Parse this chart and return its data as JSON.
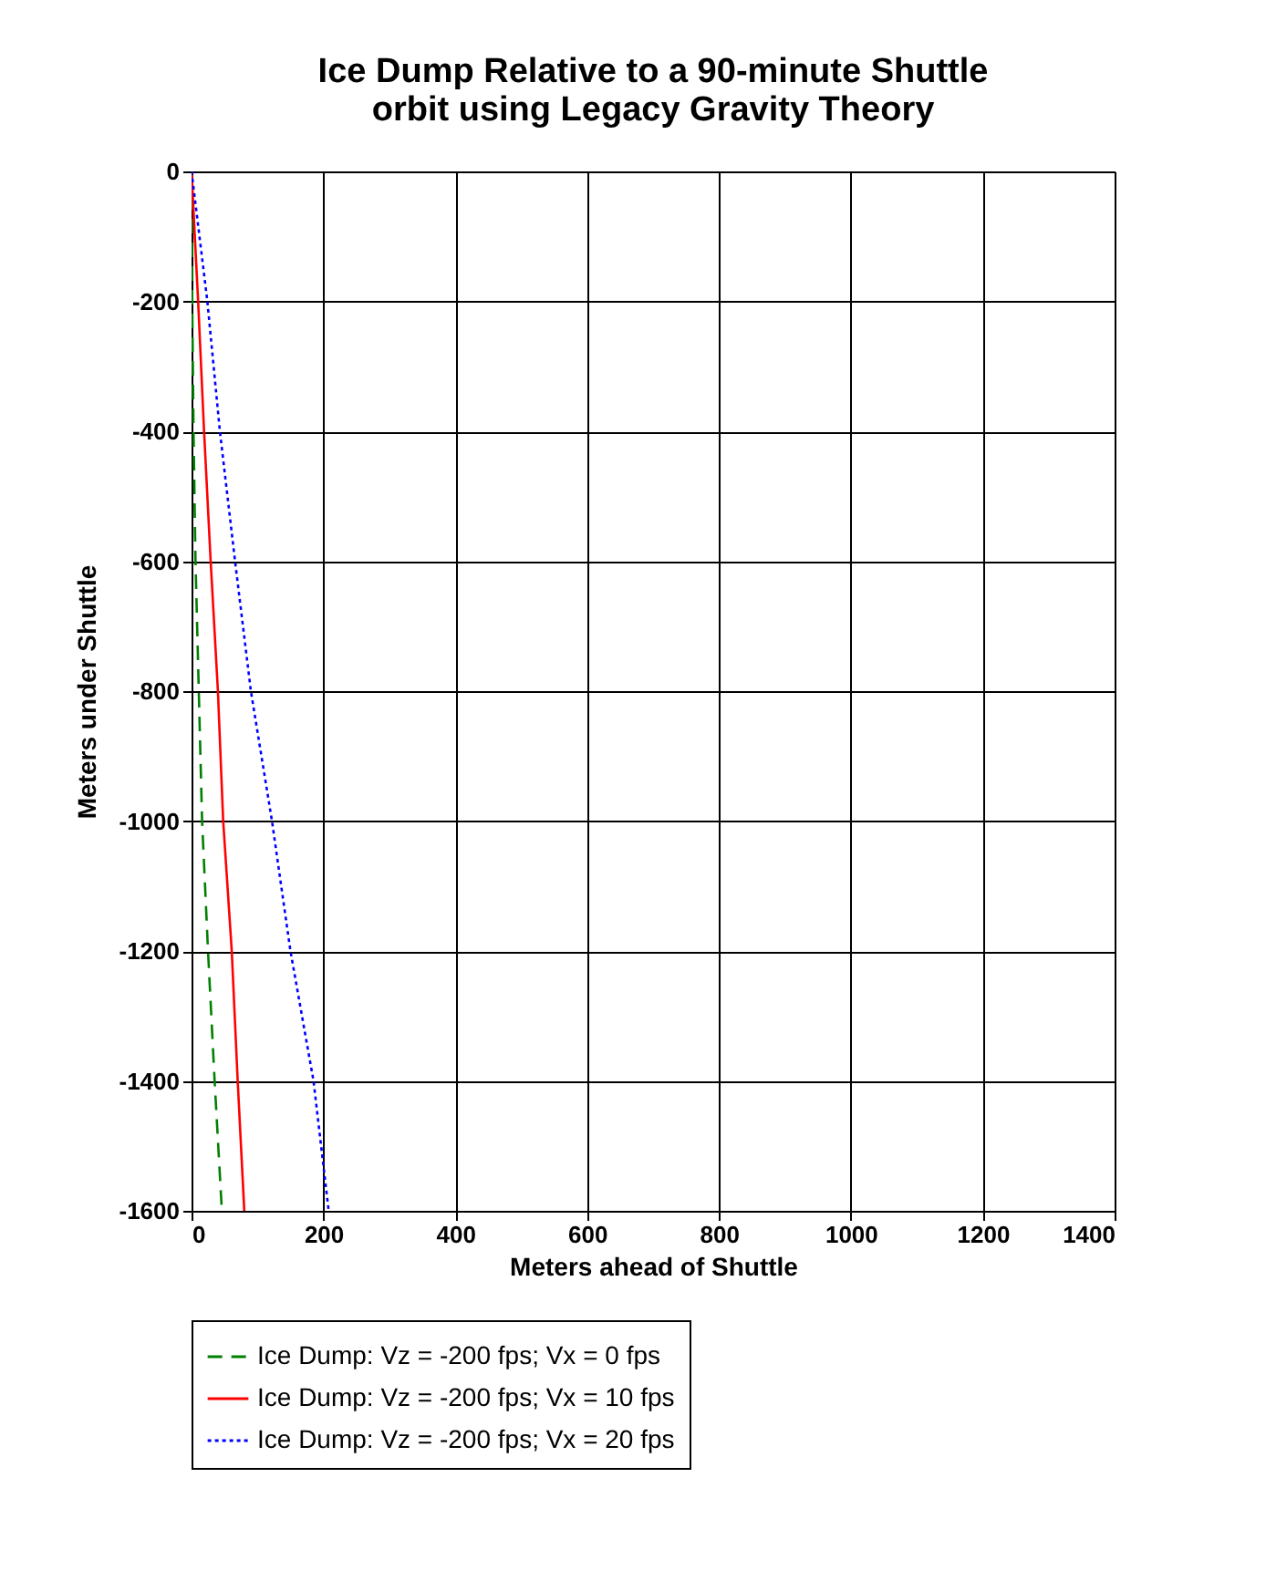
{
  "chart_data": {
    "type": "line",
    "title": [
      "Ice Dump Relative to a 90-minute Shuttle",
      "orbit using Legacy Gravity Theory"
    ],
    "xlabel": "Meters ahead of Shuttle",
    "ylabel": "Meters under Shuttle",
    "series": [
      {
        "name": "Ice Dump: Vz = -200 fps; Vx = 0 fps",
        "color": "#008000",
        "line_style": "dashed",
        "x": [
          0,
          1,
          3,
          6,
          11,
          16,
          25,
          35,
          46
        ],
        "values": [
          0,
          -200,
          -400,
          -600,
          -800,
          -1000,
          -1200,
          -1400,
          -1600
        ]
      },
      {
        "name": "Ice Dump: Vz = -200 fps; Vx = 10 fps",
        "color": "#ff0000",
        "line_style": "solid",
        "x": [
          0,
          10,
          19,
          29,
          40,
          48,
          61,
          70,
          80
        ],
        "values": [
          0,
          -200,
          -400,
          -600,
          -800,
          -1000,
          -1200,
          -1400,
          -1600
        ]
      },
      {
        "name": "Ice Dump: Vz = -200 fps; Vx = 20 fps",
        "color": "#0000ff",
        "line_style": "dotted",
        "x": [
          0,
          24,
          43,
          66,
          90,
          122,
          150,
          185,
          208
        ],
        "values": [
          0,
          -200,
          -400,
          -600,
          -800,
          -1000,
          -1200,
          -1400,
          -1600
        ]
      }
    ],
    "xlim": [
      0,
      1400
    ],
    "xticks": [
      0,
      200,
      400,
      600,
      800,
      1000,
      1200,
      1400
    ],
    "ylim": [
      -1600,
      0
    ],
    "yticks": [
      0,
      -200,
      -400,
      -600,
      -800,
      -1000,
      -1200,
      -1400,
      -1600
    ],
    "grid": true,
    "legend": "bottom",
    "marker": "none"
  }
}
